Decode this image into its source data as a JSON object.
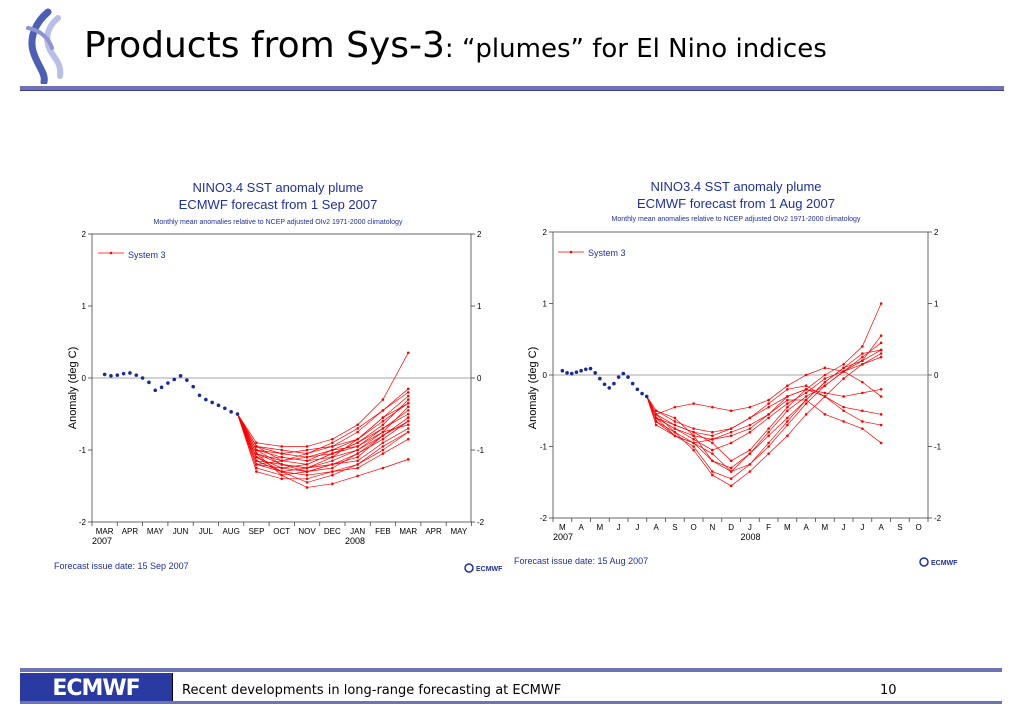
{
  "slide": {
    "title_main": "Products from Sys-3",
    "title_sub": ": “plumes” for El Nino indices",
    "footer_logo": "ECMWF",
    "footer_text": "Recent developments in long-range forecasting at ECMWF",
    "page_number": "10"
  },
  "colors": {
    "title_rule": "#6e72b6",
    "chart_text": "#1f2f9c",
    "plume": "#ff0000",
    "observed": "#1a2a9c"
  },
  "chart_data": [
    {
      "type": "line",
      "title": "NINO3.4 SST anomaly plume",
      "subtitle": "ECMWF forecast from 1 Sep 2007",
      "note": "Monthly mean anomalies relative to NCEP adjusted OIv2 1971-2000 climatology",
      "ylabel": "Anomaly (deg C)",
      "ylim": [
        -2,
        2
      ],
      "yticks": [
        2,
        1,
        0,
        -1,
        -2
      ],
      "x_labels": [
        "MAR",
        "APR",
        "MAY",
        "JUN",
        "JUL",
        "AUG",
        "SEP",
        "OCT",
        "NOV",
        "DEC",
        "JAN",
        "FEB",
        "MAR",
        "APR",
        "MAY"
      ],
      "year_labels": [
        {
          "text": "2007",
          "at": 0
        },
        {
          "text": "2008",
          "at": 10
        }
      ],
      "legend": {
        "label": "System 3",
        "placement": "top-left"
      },
      "issue_date": "Forecast issue date: 15 Sep 2007",
      "logo_text": "ECMWF",
      "observed": {
        "x": [
          0,
          0.25,
          0.5,
          0.75,
          1,
          1.25,
          1.5,
          1.75,
          2,
          2.25,
          2.5,
          2.75,
          3,
          3.25,
          3.5,
          3.75,
          4,
          4.25,
          4.5,
          4.75,
          5,
          5.25
        ],
        "y": [
          0.05,
          0.03,
          0.04,
          0.06,
          0.07,
          0.04,
          0.0,
          -0.06,
          -0.17,
          -0.13,
          -0.07,
          -0.02,
          0.03,
          -0.03,
          -0.12,
          -0.24,
          -0.3,
          -0.34,
          -0.38,
          -0.42,
          -0.47,
          -0.5
        ]
      },
      "forecast_start": {
        "x": 5.25,
        "y": -0.5
      },
      "forecast_months": [
        6,
        7,
        8,
        9,
        10,
        11,
        12
      ],
      "members": [
        [
          -1.05,
          -1.35,
          -1.52,
          -1.47,
          -1.36,
          -1.25,
          -1.13
        ],
        [
          -1.1,
          -1.3,
          -1.45,
          -1.35,
          -1.2,
          -0.95,
          -0.75
        ],
        [
          -1.0,
          -1.2,
          -1.25,
          -1.1,
          -0.85,
          -0.55,
          -0.35
        ],
        [
          -0.95,
          -1.15,
          -1.05,
          -0.95,
          -0.75,
          -0.45,
          -0.2
        ],
        [
          -1.15,
          -1.3,
          -1.35,
          -1.3,
          -1.25,
          -1.05,
          -0.85
        ],
        [
          -0.9,
          -0.95,
          -0.95,
          -0.85,
          -0.65,
          -0.3,
          0.35
        ],
        [
          -1.25,
          -1.35,
          -1.3,
          -1.2,
          -1.1,
          -0.8,
          -0.55
        ],
        [
          -1.2,
          -1.25,
          -1.2,
          -1.05,
          -0.9,
          -0.7,
          -0.5
        ],
        [
          -1.1,
          -1.1,
          -1.15,
          -1.0,
          -0.95,
          -0.75,
          -0.65
        ],
        [
          -1.05,
          -1.2,
          -1.3,
          -1.25,
          -1.05,
          -0.85,
          -0.6
        ],
        [
          -1.0,
          -1.05,
          -1.1,
          -1.05,
          -0.95,
          -0.7,
          -0.45
        ],
        [
          -1.15,
          -1.2,
          -1.25,
          -1.15,
          -1.0,
          -0.75,
          -0.4
        ],
        [
          -1.3,
          -1.4,
          -1.4,
          -1.3,
          -1.2,
          -1.0,
          -0.75
        ],
        [
          -0.95,
          -1.05,
          -1.0,
          -0.95,
          -0.85,
          -0.55,
          -0.25
        ],
        [
          -1.05,
          -1.15,
          -1.2,
          -1.05,
          -0.9,
          -0.65,
          -0.3
        ],
        [
          -1.2,
          -1.3,
          -1.25,
          -1.2,
          -1.15,
          -0.9,
          -0.7
        ],
        [
          -0.95,
          -1.0,
          -1.05,
          -0.9,
          -0.7,
          -0.45,
          -0.15
        ],
        [
          -1.1,
          -1.25,
          -1.3,
          -1.2,
          -1.05,
          -0.8,
          -0.55
        ],
        [
          -1.0,
          -1.1,
          -1.15,
          -1.1,
          -1.0,
          -0.8,
          -0.6
        ],
        [
          -1.2,
          -1.15,
          -1.1,
          -1.0,
          -0.85,
          -0.6,
          -0.35
        ]
      ]
    },
    {
      "type": "line",
      "title": "NINO3.4 SST anomaly plume",
      "subtitle": "ECMWF forecast from 1 Aug 2007",
      "note": "Monthly mean anomalies relative to NCEP adjusted OIv2 1971-2000 climatology",
      "ylabel": "Anomaly (deg C)",
      "ylim": [
        -2,
        2
      ],
      "yticks": [
        2,
        1,
        0,
        -1,
        -2
      ],
      "x_labels": [
        "M",
        "A",
        "M",
        "J",
        "J",
        "A",
        "S",
        "O",
        "N",
        "D",
        "J",
        "F",
        "M",
        "A",
        "M",
        "J",
        "J",
        "A",
        "S",
        "O"
      ],
      "year_labels": [
        {
          "text": "2007",
          "at": 0
        },
        {
          "text": "2008",
          "at": 10
        }
      ],
      "legend": {
        "label": "System 3",
        "placement": "top-left"
      },
      "issue_date": "Forecast issue date: 15 Aug 2007",
      "logo_text": "ECMWF",
      "observed": {
        "x": [
          0,
          0.25,
          0.5,
          0.75,
          1,
          1.25,
          1.5,
          1.75,
          2,
          2.25,
          2.5,
          2.75,
          3,
          3.25,
          3.5,
          3.75,
          4,
          4.25,
          4.5
        ],
        "y": [
          0.06,
          0.03,
          0.02,
          0.04,
          0.06,
          0.08,
          0.09,
          0.03,
          -0.05,
          -0.13,
          -0.18,
          -0.12,
          -0.03,
          0.02,
          -0.03,
          -0.12,
          -0.2,
          -0.26,
          -0.3
        ]
      },
      "forecast_start": {
        "x": 4.5,
        "y": -0.3
      },
      "forecast_months": [
        5,
        6,
        7,
        8,
        9,
        10,
        11,
        12,
        13,
        14,
        15,
        16,
        17
      ],
      "members": [
        [
          -0.55,
          -0.8,
          -1.05,
          -1.4,
          -1.55,
          -1.35,
          -1.1,
          -0.85,
          -0.55,
          -0.3,
          -0.05,
          0.15,
          0.3
        ],
        [
          -0.6,
          -0.85,
          -1.0,
          -1.35,
          -1.45,
          -1.25,
          -0.95,
          -0.65,
          -0.35,
          -0.1,
          0.1,
          0.3,
          0.35
        ],
        [
          -0.5,
          -0.6,
          -0.85,
          -1.2,
          -1.35,
          -1.1,
          -0.8,
          -0.5,
          -0.3,
          -0.15,
          0.05,
          0.25,
          0.45
        ],
        [
          -0.6,
          -0.7,
          -0.8,
          -0.95,
          -1.2,
          -1.05,
          -0.75,
          -0.45,
          -0.2,
          0.0,
          0.15,
          0.4,
          1.0
        ],
        [
          -0.65,
          -0.8,
          -0.95,
          -1.1,
          -1.35,
          -1.25,
          -1.0,
          -0.7,
          -0.4,
          -0.15,
          0.05,
          0.2,
          0.55
        ],
        [
          -0.55,
          -0.45,
          -0.4,
          -0.45,
          -0.5,
          -0.45,
          -0.35,
          -0.15,
          0.0,
          0.1,
          0.05,
          -0.1,
          -0.3
        ],
        [
          -0.7,
          -0.85,
          -0.95,
          -0.9,
          -0.85,
          -0.75,
          -0.55,
          -0.3,
          -0.2,
          -0.3,
          -0.5,
          -0.65,
          -0.7
        ],
        [
          -0.6,
          -0.75,
          -0.85,
          -0.9,
          -0.8,
          -0.7,
          -0.55,
          -0.35,
          -0.35,
          -0.55,
          -0.65,
          -0.75,
          -0.95
        ],
        [
          -0.55,
          -0.7,
          -0.8,
          -0.85,
          -0.75,
          -0.6,
          -0.45,
          -0.3,
          -0.2,
          -0.25,
          -0.3,
          -0.25,
          -0.2
        ],
        [
          -0.6,
          -0.75,
          -0.9,
          -1.05,
          -0.95,
          -0.8,
          -0.6,
          -0.4,
          -0.25,
          -0.05,
          0.05,
          0.15,
          0.25
        ],
        [
          -0.65,
          -0.85,
          -0.95,
          -1.2,
          -1.3,
          -1.1,
          -0.85,
          -0.6,
          -0.35,
          -0.1,
          0.1,
          0.2,
          0.35
        ],
        [
          -0.5,
          -0.65,
          -0.75,
          -0.8,
          -0.75,
          -0.6,
          -0.4,
          -0.2,
          -0.15,
          -0.3,
          -0.45,
          -0.5,
          -0.55
        ]
      ]
    }
  ]
}
